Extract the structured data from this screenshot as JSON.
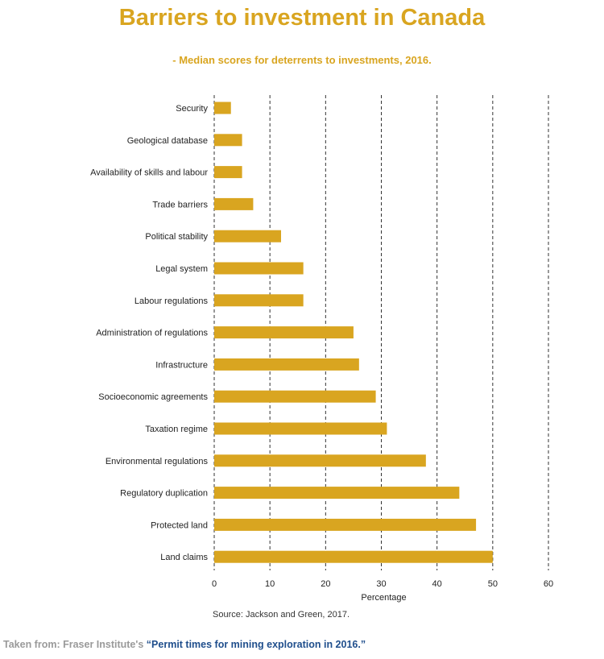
{
  "colors": {
    "bar": "#d9a520",
    "title": "#d9a520",
    "grid": "#333333",
    "link": "#1f4e8c",
    "footer_text": "#9a9a9a"
  },
  "title": "Barriers to investment in Canada",
  "subtitle": "- Median scores for deterrents to investments, 2016.",
  "source": "Source: Jackson and Green, 2017.",
  "footer": {
    "prefix": "Taken from: Fraser Institute's ",
    "link_text": "“Permit times for mining exploration in 2016.”"
  },
  "chart_data": {
    "type": "bar",
    "orientation": "horizontal",
    "title": "Barriers to investment in Canada",
    "subtitle": "- Median scores for deterrents to investments, 2016.",
    "xlabel": "Percentage",
    "ylabel": "",
    "xlim": [
      0,
      60
    ],
    "xticks": [
      0,
      10,
      20,
      30,
      40,
      50,
      60
    ],
    "grid": "vertical dashed",
    "categories": [
      "Security",
      "Geological database",
      "Availability of skills and labour",
      "Trade barriers",
      "Political stability",
      "Legal system",
      "Labour regulations",
      "Administration of regulations",
      "Infrastructure",
      "Socioeconomic agreements",
      "Taxation regime",
      "Environmental regulations",
      "Regulatory duplication",
      "Protected land",
      "Land claims"
    ],
    "values": [
      3,
      5,
      5,
      7,
      12,
      16,
      16,
      25,
      26,
      29,
      31,
      38,
      44,
      47,
      50
    ]
  }
}
